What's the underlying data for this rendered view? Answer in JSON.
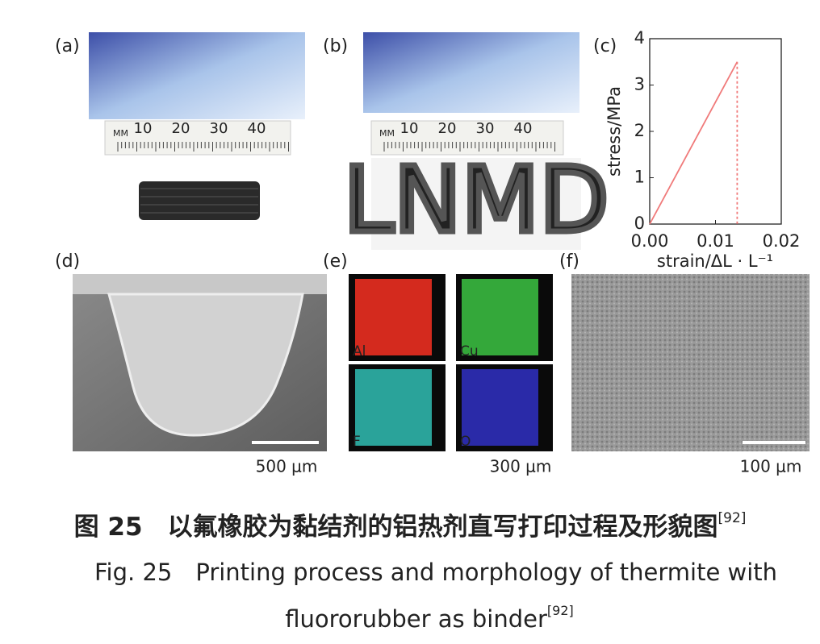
{
  "panels": [
    {
      "label": "(a)"
    },
    {
      "label": "(b)"
    },
    {
      "label": "(c)"
    },
    {
      "label": "(d)"
    },
    {
      "label": "(e)"
    },
    {
      "label": "(f)"
    }
  ],
  "ruler": {
    "unit": "MM",
    "marks": [
      "10",
      "20",
      "30",
      "40"
    ]
  },
  "printed_word": "LNMD",
  "eds_maps": [
    "Al",
    "Cu",
    "F",
    "O"
  ],
  "scale_bars": [
    "500 μm",
    "300 μm",
    "100 μm"
  ],
  "chart_data": {
    "type": "line",
    "ylabel": "stress/MPa",
    "xlabel": "strain/ΔL · L⁻¹",
    "series": [
      {
        "color": "#f07a7a",
        "x": [
          0,
          0.0133
        ],
        "values": [
          0,
          3.5
        ],
        "dash": false
      },
      {
        "color": "#f07a7a",
        "x": [
          0.0133,
          0.0133
        ],
        "values": [
          3.5,
          0
        ],
        "dash": true
      }
    ],
    "xlim": [
      0,
      0.02
    ],
    "xticks": [
      {
        "value": 0,
        "label": "0.00"
      },
      {
        "value": 0.01,
        "label": "0.01"
      },
      {
        "value": 0.02,
        "label": "0.02"
      }
    ],
    "ylim": [
      0,
      4
    ],
    "yticks": [
      0,
      1,
      2,
      3,
      4
    ]
  },
  "caption": {
    "cn": "图 25　以氟橡胶为黏结剂的铝热剂直写打印过程及形貌图",
    "cn_ref": "[92]",
    "en_line1": "Fig. 25　Printing process and morphology of thermite with",
    "en_line2": "fluororubber as binder",
    "en_ref": "[92]"
  }
}
